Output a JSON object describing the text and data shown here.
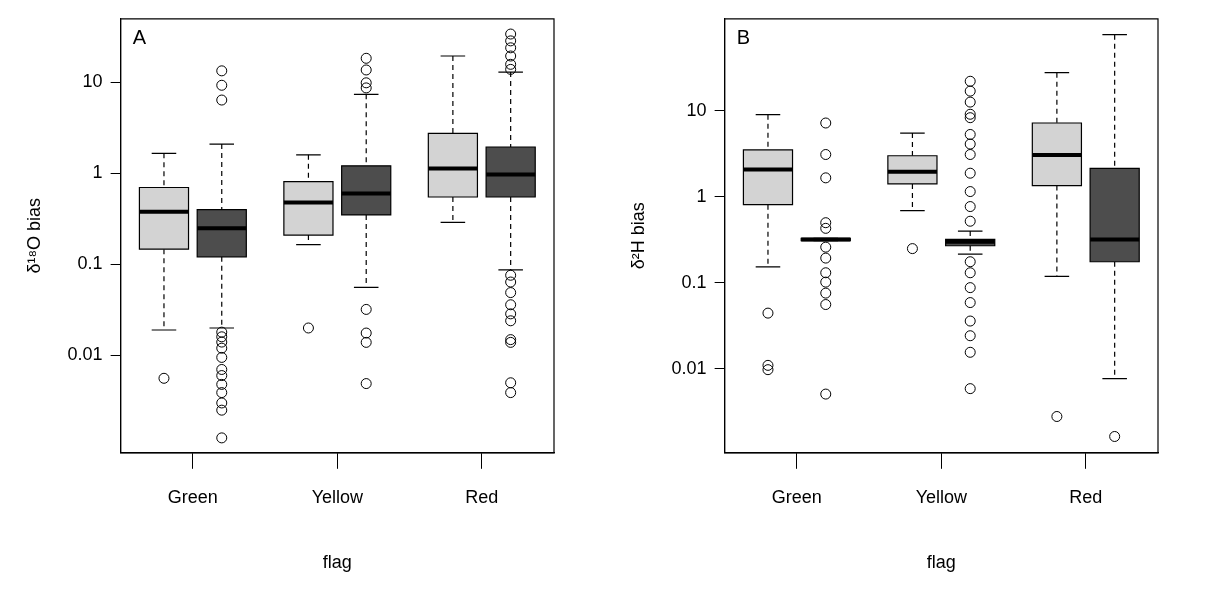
{
  "chart_data": [
    {
      "type": "box",
      "annotations": [
        "A"
      ],
      "xlabel": "flag",
      "ylabel": "δ¹⁸O bias",
      "categories": [
        "Green",
        "Yellow",
        "Red"
      ],
      "log": true,
      "ylim": [
        0.00085,
        50
      ],
      "yticks": [
        10,
        1,
        0.1,
        0.01
      ],
      "grid": false,
      "legend": false,
      "marker": "circle",
      "series": [
        {
          "color": "#d3d3d3",
          "boxes": [
            {
              "low": 0.019,
              "q1": 0.147,
              "median": 0.38,
              "q3": 0.7,
              "high": 1.66,
              "outliers": [
                0.0056
              ]
            },
            {
              "low": 0.165,
              "q1": 0.21,
              "median": 0.48,
              "q3": 0.81,
              "high": 1.6,
              "outliers": [
                0.02
              ]
            },
            {
              "low": 0.29,
              "q1": 0.55,
              "median": 1.13,
              "q3": 2.75,
              "high": 19.5
            }
          ]
        },
        {
          "color": "#4d4d4d",
          "boxes": [
            {
              "low": 0.02,
              "q1": 0.121,
              "median": 0.25,
              "q3": 0.4,
              "high": 2.1,
              "outliers": [
                13.4,
                9.3,
                6.4,
                0.018,
                0.016,
                0.014,
                0.012,
                0.0095,
                0.007,
                0.006,
                0.0048,
                0.0039,
                0.003,
                0.0025,
                0.00124
              ]
            },
            {
              "low": 0.056,
              "q1": 0.35,
              "median": 0.6,
              "q3": 1.21,
              "high": 7.4,
              "outliers": [
                18.4,
                13.7,
                9.9,
                8.7,
                0.032,
                0.0176,
                0.0139,
                0.0049
              ]
            },
            {
              "low": 0.087,
              "q1": 0.55,
              "median": 0.97,
              "q3": 1.95,
              "high": 13,
              "outliers": [
                34,
                28.6,
                24,
                19.5,
                15.8,
                13.9,
                0.076,
                0.064,
                0.049,
                0.036,
                0.0286,
                0.024,
                0.0149,
                0.0139,
                0.005,
                0.0039
              ]
            }
          ]
        }
      ]
    },
    {
      "type": "box",
      "annotations": [
        "B"
      ],
      "xlabel": "flag",
      "ylabel": "δ²H bias",
      "categories": [
        "Green",
        "Yellow",
        "Red"
      ],
      "log": true,
      "ylim": [
        0.00106,
        117
      ],
      "yticks": [
        10,
        1,
        0.1,
        0.01
      ],
      "grid": false,
      "legend": false,
      "marker": "circle",
      "series": [
        {
          "color": "#d3d3d3",
          "boxes": [
            {
              "low": 0.153,
              "q1": 0.81,
              "median": 2.08,
              "q3": 3.5,
              "high": 9,
              "outliers": [
                0.0445,
                0.011,
                0.0098
              ]
            },
            {
              "low": 0.69,
              "q1": 1.41,
              "median": 1.96,
              "q3": 3,
              "high": 5.5,
              "outliers": [
                0.25
              ]
            },
            {
              "low": 0.119,
              "q1": 1.35,
              "median": 3.05,
              "q3": 7.2,
              "high": 27.7,
              "outliers": [
                0.0028
              ]
            }
          ]
        },
        {
          "color": "#4d4d4d",
          "boxes": [
            {
              "low": 0.31,
              "q1": 0.31,
              "median": 0.32,
              "q3": 0.33,
              "high": 0.33,
              "outliers": [
                7.2,
                3.1,
                1.66,
                0.5,
                0.43,
                0.26,
                0.194,
                0.131,
                0.102,
                0.076,
                0.056,
                0.0051
              ]
            },
            {
              "low": 0.216,
              "q1": 0.27,
              "median": 0.3,
              "q3": 0.32,
              "high": 0.4,
              "outliers": [
                22,
                16.9,
                12.6,
                9.1,
                8.3,
                5.3,
                4.1,
                3.1,
                1.88,
                1.15,
                0.77,
                0.52,
                0.176,
                0.131,
                0.088,
                0.059,
                0.036,
                0.0243,
                0.0156,
                0.0059
              ]
            },
            {
              "low": 0.0077,
              "q1": 0.176,
              "median": 0.32,
              "q3": 2.14,
              "high": 76.6,
              "outliers": [
                0.00164
              ]
            }
          ]
        }
      ]
    }
  ]
}
